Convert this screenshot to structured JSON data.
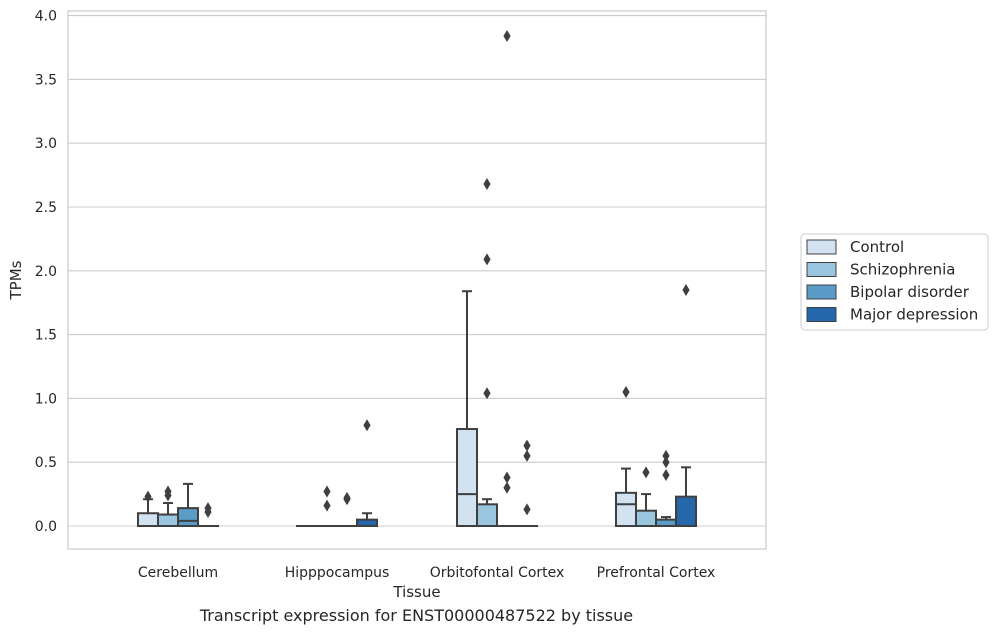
{
  "chart_data": {
    "type": "box",
    "xlabel": "Tissue",
    "ylabel": "TPMs",
    "caption": "Transcript expression for ENST00000487522 by tissue",
    "ylim": [
      -0.18,
      4.05
    ],
    "yticks": [
      "0.0",
      "0.5",
      "1.0",
      "1.5",
      "2.0",
      "2.5",
      "3.0",
      "3.5",
      "4.0"
    ],
    "grid": "horizontal",
    "legend_position": "right",
    "categories": [
      "Cerebellum",
      "Hipppocampus",
      "Orbitofontal Cortex",
      "Prefrontal Cortex"
    ],
    "series": [
      {
        "name": "Control",
        "color": "#d2e2f1",
        "boxes": [
          {
            "q1": 0.0,
            "median": 0.0,
            "q3": 0.1,
            "whisker_low": 0.0,
            "whisker_high": 0.21,
            "outliers": [
              0.23
            ]
          },
          {
            "q1": 0.0,
            "median": 0.0,
            "q3": 0.0,
            "whisker_low": 0.0,
            "whisker_high": 0.0,
            "outliers": []
          },
          {
            "q1": 0.0,
            "median": 0.25,
            "q3": 0.76,
            "whisker_low": 0.0,
            "whisker_high": 1.84,
            "outliers": []
          },
          {
            "q1": 0.0,
            "median": 0.17,
            "q3": 0.26,
            "whisker_low": 0.0,
            "whisker_high": 0.45,
            "outliers": [
              1.05
            ]
          }
        ]
      },
      {
        "name": "Schizophrenia",
        "color": "#9ac5de",
        "boxes": [
          {
            "q1": 0.0,
            "median": 0.0,
            "q3": 0.09,
            "whisker_low": 0.0,
            "whisker_high": 0.18,
            "outliers": [
              0.24,
              0.27
            ]
          },
          {
            "q1": 0.0,
            "median": 0.0,
            "q3": 0.0,
            "whisker_low": 0.0,
            "whisker_high": 0.0,
            "outliers": [
              0.16,
              0.27
            ]
          },
          {
            "q1": 0.0,
            "median": 0.0,
            "q3": 0.17,
            "whisker_low": 0.0,
            "whisker_high": 0.21,
            "outliers": [
              1.04,
              2.09,
              2.68
            ]
          },
          {
            "q1": 0.0,
            "median": 0.0,
            "q3": 0.12,
            "whisker_low": 0.0,
            "whisker_high": 0.25,
            "outliers": [
              0.42
            ]
          }
        ]
      },
      {
        "name": "Bipolar disorder",
        "color": "#5a9bc8",
        "boxes": [
          {
            "q1": 0.0,
            "median": 0.04,
            "q3": 0.14,
            "whisker_low": 0.0,
            "whisker_high": 0.33,
            "outliers": []
          },
          {
            "q1": 0.0,
            "median": 0.0,
            "q3": 0.0,
            "whisker_low": 0.0,
            "whisker_high": 0.0,
            "outliers": [
              0.21,
              0.22
            ]
          },
          {
            "q1": 0.0,
            "median": 0.0,
            "q3": 0.0,
            "whisker_low": 0.0,
            "whisker_high": 0.0,
            "outliers": [
              0.3,
              0.38,
              3.84
            ]
          },
          {
            "q1": 0.0,
            "median": 0.0,
            "q3": 0.05,
            "whisker_low": 0.0,
            "whisker_high": 0.07,
            "outliers": [
              0.4,
              0.5,
              0.55
            ]
          }
        ]
      },
      {
        "name": "Major depression",
        "color": "#2567ab",
        "boxes": [
          {
            "q1": 0.0,
            "median": 0.0,
            "q3": 0.0,
            "whisker_low": 0.0,
            "whisker_high": 0.0,
            "outliers": [
              0.11,
              0.14
            ]
          },
          {
            "q1": 0.0,
            "median": 0.0,
            "q3": 0.05,
            "whisker_low": 0.0,
            "whisker_high": 0.1,
            "outliers": [
              0.79
            ]
          },
          {
            "q1": 0.0,
            "median": 0.0,
            "q3": 0.0,
            "whisker_low": 0.0,
            "whisker_high": 0.0,
            "outliers": [
              0.13,
              0.55,
              0.63
            ]
          },
          {
            "q1": 0.0,
            "median": 0.0,
            "q3": 0.23,
            "whisker_low": 0.0,
            "whisker_high": 0.46,
            "outliers": [
              1.85
            ]
          }
        ]
      }
    ]
  }
}
